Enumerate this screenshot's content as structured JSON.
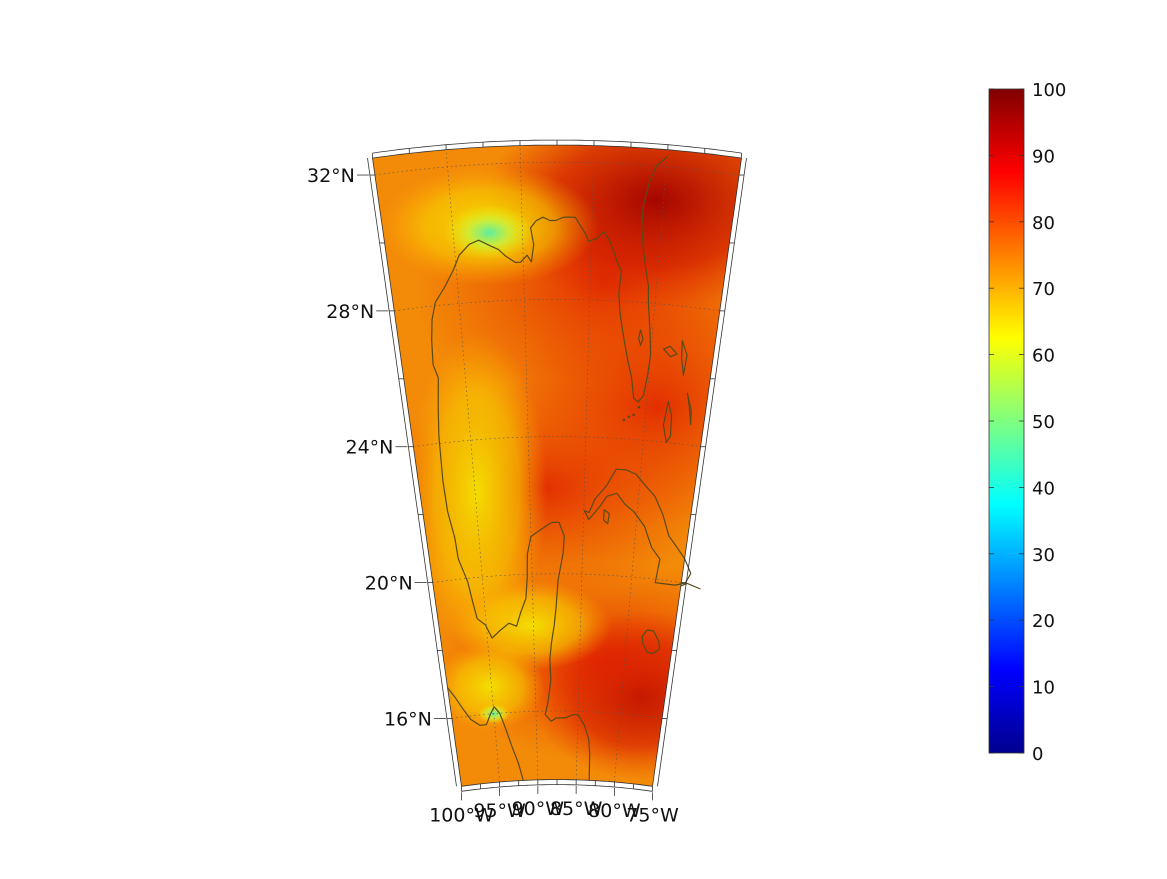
{
  "map": {
    "lat_labels": [
      {
        "lat": 32,
        "text": "32°N"
      },
      {
        "lat": 28,
        "text": "28°N"
      },
      {
        "lat": 24,
        "text": "24°N"
      },
      {
        "lat": 20,
        "text": "20°N"
      },
      {
        "lat": 16,
        "text": "16°N"
      }
    ],
    "lon_labels": [
      {
        "lon": -100,
        "text": "100°W"
      },
      {
        "lon": -95,
        "text": "95°W"
      },
      {
        "lon": -90,
        "text": "90°W"
      },
      {
        "lon": -85,
        "text": "85°W"
      },
      {
        "lon": -80,
        "text": "80°W"
      },
      {
        "lon": -75,
        "text": "75°W"
      }
    ],
    "colors": {
      "coastline": "#5a4a1a",
      "gridline": "#555555",
      "frame": "#333333"
    }
  },
  "colorbar": {
    "min": 0,
    "max": 100,
    "ticks": [
      "0",
      "10",
      "20",
      "30",
      "40",
      "50",
      "60",
      "70",
      "80",
      "90",
      "100"
    ],
    "colormap": "jet"
  }
}
